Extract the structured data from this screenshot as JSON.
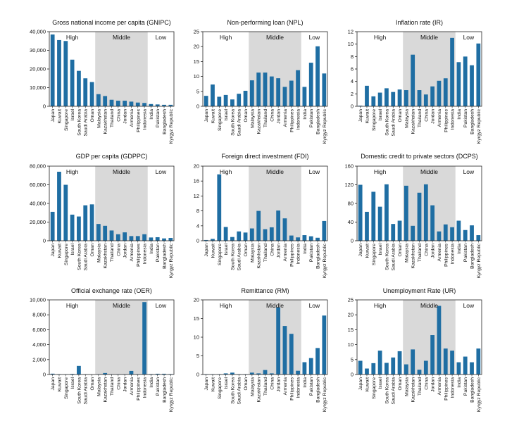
{
  "colors": {
    "bar": "#1f6ea3",
    "middle_band": "#d9d9d9",
    "axis": "#222222"
  },
  "countries": [
    "Japan",
    "Kuwait",
    "Singapore",
    "Israel",
    "South Korea",
    "Saudi Arabia",
    "Oman",
    "Malaysia",
    "Kazakhstan",
    "Thailand",
    "China",
    "Jordan",
    "Armenia",
    "Philippines",
    "Indonesia",
    "India",
    "Pakistan",
    "Bangladesh",
    "Kyrgyz Republic"
  ],
  "groups": [
    {
      "label": "High",
      "start": 0,
      "end": 6,
      "shaded": false
    },
    {
      "label": "Middle",
      "start": 7,
      "end": 14,
      "shaded": true
    },
    {
      "label": "Low",
      "start": 15,
      "end": 18,
      "shaded": false
    }
  ],
  "chart_data": [
    {
      "type": "bar",
      "title": "Gross national income per capita (GNIPC)",
      "ylim": [
        0,
        40000
      ],
      "yticks": [
        0,
        10000,
        20000,
        30000,
        40000
      ],
      "ytick_labels": [
        "0",
        "10,000",
        "20,000",
        "30,000",
        "40,000"
      ],
      "values": [
        38500,
        35500,
        35000,
        25000,
        19000,
        15000,
        13000,
        6500,
        5500,
        3500,
        3000,
        3000,
        2500,
        2000,
        1800,
        1200,
        1000,
        800,
        800
      ]
    },
    {
      "type": "bar",
      "title": "Non-performing loan (NPL)",
      "ylim": [
        0,
        25
      ],
      "yticks": [
        0,
        5,
        10,
        15,
        20,
        25
      ],
      "ytick_labels": [
        "0",
        "5",
        "10",
        "15",
        "20",
        "25"
      ],
      "values": [
        3.5,
        7.3,
        3.2,
        3.8,
        2.3,
        4.2,
        5.2,
        8.7,
        11.3,
        11.3,
        10.0,
        9.4,
        6.5,
        8.6,
        12.1,
        6.5,
        14.6,
        20.1,
        11.0
      ]
    },
    {
      "type": "bar",
      "title": "Inflation rate (IR)",
      "ylim": [
        0,
        12
      ],
      "yticks": [
        0,
        2,
        4,
        6,
        8,
        10,
        12
      ],
      "ytick_labels": [
        "0",
        "2",
        "4",
        "6",
        "8",
        "10",
        "12"
      ],
      "values": [
        0.1,
        3.3,
        1.6,
        2.2,
        2.9,
        2.3,
        2.7,
        2.6,
        8.3,
        2.6,
        1.9,
        3.2,
        4.1,
        4.5,
        11.0,
        7.1,
        8.0,
        6.6,
        10.1
      ]
    },
    {
      "type": "bar",
      "title": "GDP per capita (GDPPC)",
      "ylim": [
        0,
        80000
      ],
      "yticks": [
        0,
        20000,
        40000,
        60000,
        80000
      ],
      "ytick_labels": [
        "0",
        "20,000",
        "40,000",
        "60,000",
        "80,000"
      ],
      "values": [
        31000,
        74000,
        60000,
        28000,
        26000,
        38000,
        39000,
        18000,
        16000,
        11000,
        7000,
        9000,
        5000,
        5000,
        7000,
        3500,
        3800,
        2500,
        3000
      ]
    },
    {
      "type": "bar",
      "title": "Foreign direct investment (FDI)",
      "ylim": [
        0,
        20
      ],
      "yticks": [
        0,
        4,
        8,
        12,
        16,
        20
      ],
      "ytick_labels": [
        "0",
        "4",
        "8",
        "12",
        "16",
        "20"
      ],
      "values": [
        0.2,
        0.5,
        17.8,
        3.7,
        1.0,
        2.5,
        2.2,
        3.3,
        8.0,
        3.1,
        3.6,
        8.1,
        6.0,
        1.4,
        0.9,
        1.5,
        1.2,
        0.8,
        5.3
      ]
    },
    {
      "type": "bar",
      "title": "Domestic credit to private sectors (DCPS)",
      "ylim": [
        0,
        160
      ],
      "yticks": [
        0,
        40,
        80,
        120,
        160
      ],
      "ytick_labels": [
        "0",
        "40",
        "80",
        "120",
        "160"
      ],
      "values": [
        120,
        62,
        105,
        73,
        121,
        36,
        43,
        118,
        32,
        103,
        121,
        76,
        20,
        35,
        29,
        43,
        23,
        33,
        12
      ]
    },
    {
      "type": "bar",
      "title": "Official exchange rate (OER)",
      "ylim": [
        0,
        10000
      ],
      "yticks": [
        0,
        2000,
        4000,
        6000,
        8000,
        10000
      ],
      "ytick_labels": [
        "0",
        "2,000",
        "4,000",
        "6,000",
        "8,000",
        "10,000"
      ],
      "values": [
        110,
        50,
        30,
        80,
        1150,
        40,
        10,
        40,
        200,
        40,
        40,
        40,
        480,
        50,
        9700,
        60,
        100,
        100,
        60
      ]
    },
    {
      "type": "bar",
      "title": "Remittance (RM)",
      "ylim": [
        0,
        20
      ],
      "yticks": [
        0,
        5,
        10,
        15,
        20
      ],
      "ytick_labels": [
        "0",
        "5",
        "10",
        "15",
        "20"
      ],
      "values": [
        0.1,
        0.1,
        0.1,
        0.3,
        0.5,
        0.1,
        0.1,
        0.5,
        0.3,
        1.2,
        0.3,
        18.0,
        13.0,
        10.9,
        1.0,
        3.3,
        4.4,
        7.1,
        15.8
      ]
    },
    {
      "type": "bar",
      "title": "Unemployment Rate (UR)",
      "ylim": [
        0,
        25
      ],
      "yticks": [
        0,
        5,
        10,
        15,
        20,
        25
      ],
      "ytick_labels": [
        "0",
        "5",
        "10",
        "15",
        "20",
        "25"
      ],
      "values": [
        4.6,
        2.0,
        3.8,
        8.0,
        3.9,
        5.7,
        7.8,
        3.4,
        8.4,
        1.6,
        4.6,
        13.2,
        23.0,
        8.7,
        8.0,
        4.1,
        6.0,
        4.1,
        8.7
      ]
    }
  ]
}
